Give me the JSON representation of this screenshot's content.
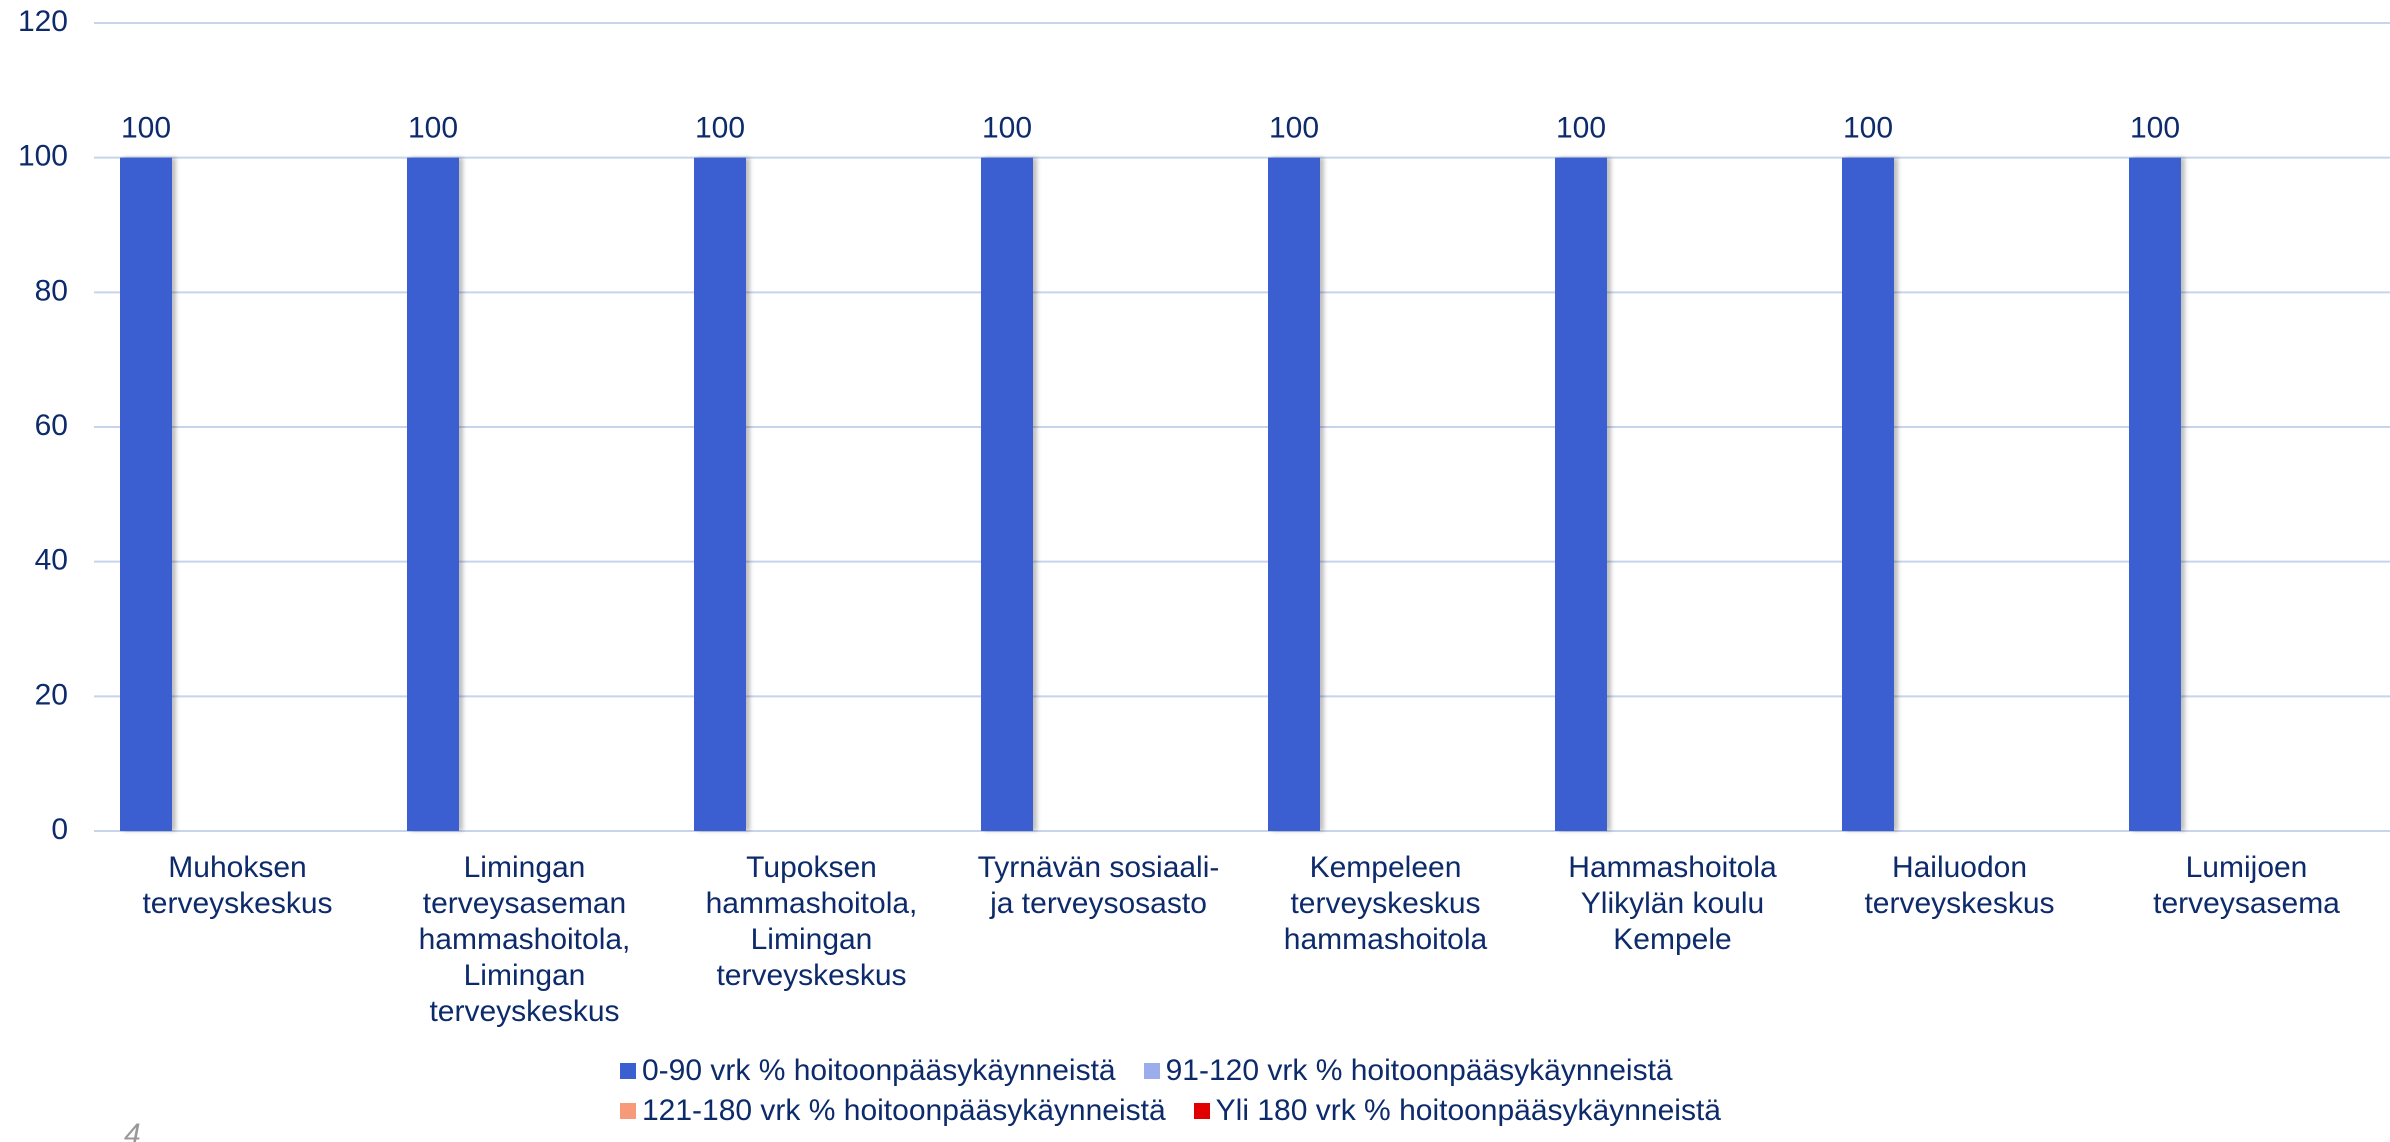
{
  "chart_data": {
    "type": "bar",
    "categories": [
      "Muhoksen terveyskeskus",
      "Limingan terveysaseman hammashoitola, Limingan terveyskeskus",
      "Tupoksen hammashoitola, Limingan terveyskeskus",
      "Tyrnävän sosiaali- ja terveysosasto",
      "Kempeleen terveyskeskus hammashoitola",
      "Hammashoitola Ylikylän koulu Kempele",
      "Hailuodon terveyskeskus",
      "Lumijoen terveysasema"
    ],
    "series": [
      {
        "name": "0-90 vrk % hoitoonpääsykäynneistä",
        "color": "#3a5fd0",
        "values": [
          100,
          100,
          100,
          100,
          100,
          100,
          100,
          100
        ],
        "data_labels": true
      },
      {
        "name": "91-120 vrk % hoitoonpääsykäynneistä",
        "color": "#9badea",
        "values": [
          0,
          0,
          0,
          0,
          0,
          0,
          0,
          0
        ],
        "data_labels": false
      },
      {
        "name": "121-180 vrk % hoitoonpääsykäynneistä",
        "color": "#f79a7a",
        "values": [
          0,
          0,
          0,
          0,
          0,
          0,
          0,
          0
        ],
        "data_labels": false
      },
      {
        "name": "Yli 180 vrk % hoitoonpääsykäynneistä",
        "color": "#e00000",
        "values": [
          0,
          0,
          0,
          0,
          0,
          0,
          0,
          0
        ],
        "data_labels": false
      }
    ],
    "ylim": [
      0,
      120
    ],
    "yticks": [
      0,
      20,
      40,
      60,
      80,
      100,
      120
    ],
    "grid": true,
    "legend": "bottom"
  },
  "page_number": "4"
}
